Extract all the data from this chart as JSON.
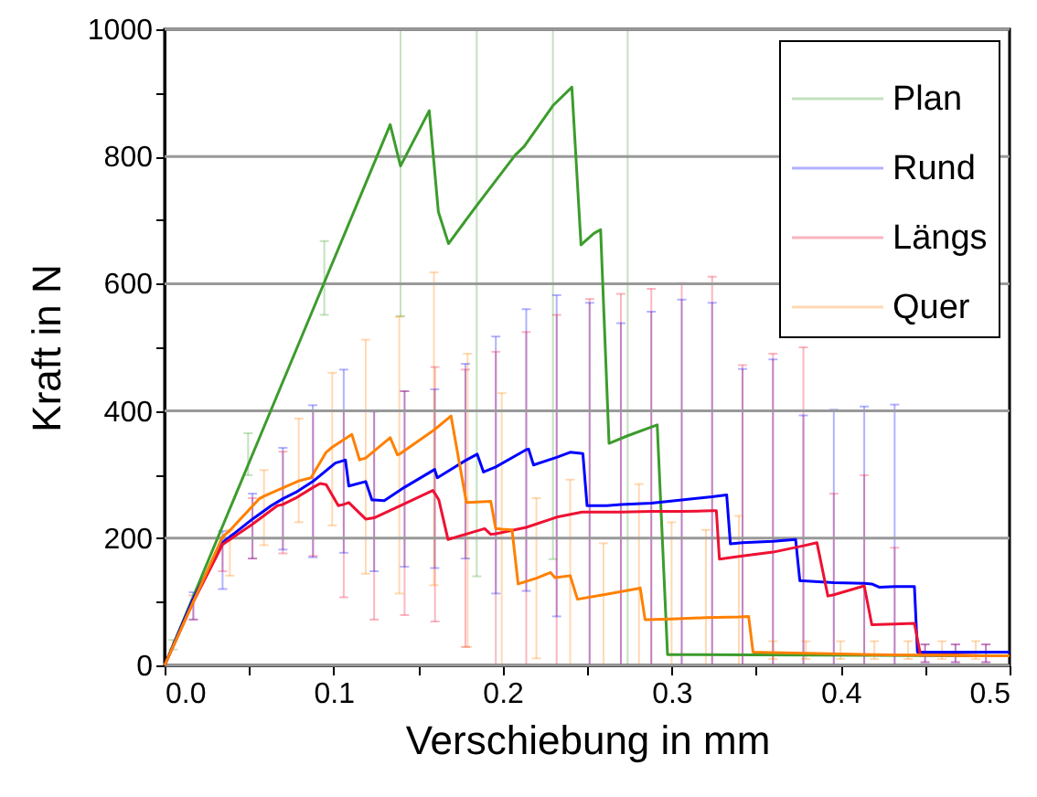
{
  "chart_data": {
    "type": "line",
    "xlabel": "Verschiebung in mm",
    "ylabel": "Kraft in N",
    "xlim": [
      0,
      0.5
    ],
    "ylim": [
      0,
      1000
    ],
    "xticks": [
      {
        "value": 0,
        "label": "0.0"
      },
      {
        "value": 0.05,
        "label": null
      },
      {
        "value": 0.1,
        "label": "0.1"
      },
      {
        "value": 0.15,
        "label": null
      },
      {
        "value": 0.2,
        "label": "0.2"
      },
      {
        "value": 0.25,
        "label": null
      },
      {
        "value": 0.3,
        "label": "0.3"
      },
      {
        "value": 0.35,
        "label": null
      },
      {
        "value": 0.4,
        "label": "0.4"
      },
      {
        "value": 0.45,
        "label": null
      },
      {
        "value": 0.5,
        "label": "0.5"
      }
    ],
    "yticks": [
      0,
      {
        "value": 100,
        "label": null
      },
      200,
      {
        "value": 300,
        "label": null
      },
      400,
      {
        "value": 500,
        "label": null
      },
      600,
      {
        "value": 700,
        "label": null
      },
      800,
      {
        "value": 900,
        "label": null
      },
      1000
    ],
    "grid": "y",
    "legend": "top right",
    "line_style": "solid",
    "marker": "none",
    "series": [
      {
        "name": "Plan",
        "color": "#3c9c2c",
        "x": [
          0,
          0.005,
          0.0494,
          0.0945,
          0.1335,
          0.1396,
          0.1566,
          0.162,
          0.168,
          0.1847,
          0.2074,
          0.2128,
          0.2298,
          0.241,
          0.2464,
          0.254,
          0.258,
          0.263,
          0.274,
          0.2915,
          0.2976,
          0.5
        ],
        "values": [
          0,
          32,
          315,
          602,
          850,
          785,
          872,
          713,
          663,
          723,
          802,
          816,
          880,
          909,
          661,
          679,
          685,
          349,
          361,
          378,
          17,
          15
        ],
        "errors": [
          null,
          [
            25,
            40
          ],
          [
            299,
            365
          ],
          [
            551,
            667
          ],
          null,
          [
            549,
            1000
          ],
          null,
          null,
          null,
          [
            140,
            1000
          ],
          null,
          null,
          [
            167,
            1000
          ],
          null,
          null,
          null,
          null,
          null,
          [
            0,
            1000
          ],
          null,
          null,
          null
        ]
      },
      {
        "name": "Rund",
        "color": "#0000ff",
        "x": [
          0,
          0.017,
          0.0343,
          0.052,
          0.0631,
          0.07,
          0.0776,
          0.0877,
          0.101,
          0.106,
          0.107,
          0.109,
          0.119,
          0.1227,
          0.124,
          0.13,
          0.142,
          0.1598,
          0.1614,
          0.178,
          0.185,
          0.1887,
          0.196,
          0.214,
          0.2154,
          0.2183,
          0.232,
          0.24,
          0.2475,
          0.25,
          0.2515,
          0.2616,
          0.27,
          0.288,
          0.306,
          0.324,
          0.3326,
          0.3348,
          0.342,
          0.36,
          0.3734,
          0.3759,
          0.378,
          0.396,
          0.414,
          0.4185,
          0.4228,
          0.432,
          0.4437,
          0.4455,
          0.45,
          0.468,
          0.486,
          0.5
        ],
        "values": [
          0,
          105,
          193,
          230,
          251,
          262,
          272,
          289,
          318,
          322,
          323,
          282,
          289,
          260,
          260,
          259,
          280,
          308,
          295,
          322,
          332,
          304,
          312,
          339,
          340,
          315,
          327,
          335,
          333,
          251,
          251,
          251,
          253,
          255,
          260,
          265,
          268,
          191,
          193,
          195,
          198,
          133,
          133,
          130,
          129,
          128,
          123,
          124,
          124,
          21,
          21,
          21,
          21,
          21
        ],
        "errors": [
          null,
          [
            72,
            115
          ],
          [
            120,
            211
          ],
          [
            168,
            270
          ],
          null,
          [
            182,
            342
          ],
          null,
          [
            170,
            409
          ],
          null,
          [
            177,
            465
          ],
          null,
          null,
          null,
          null,
          [
            148,
            399
          ],
          null,
          [
            155,
            431
          ],
          [
            153,
            434
          ],
          null,
          [
            168,
            474
          ],
          null,
          null,
          [
            113,
            517
          ],
          [
            117,
            560
          ],
          null,
          null,
          [
            77,
            582
          ],
          null,
          null,
          null,
          [
            0,
            570
          ],
          null,
          [
            0,
            538
          ],
          [
            0,
            556
          ],
          [
            0,
            575
          ],
          [
            0,
            570
          ],
          null,
          null,
          [
            0,
            466
          ],
          [
            0,
            481
          ],
          null,
          null,
          [
            0,
            393
          ],
          [
            0,
            402
          ],
          [
            0,
            407
          ],
          null,
          null,
          [
            0,
            410
          ],
          null,
          null,
          [
            5,
            33
          ],
          [
            5,
            33
          ],
          [
            5,
            33
          ],
          null
        ]
      },
      {
        "name": "Längs",
        "color": "#ee1133",
        "x": [
          0,
          0.017,
          0.0343,
          0.052,
          0.0667,
          0.07,
          0.0776,
          0.088,
          0.092,
          0.0956,
          0.1028,
          0.106,
          0.109,
          0.119,
          0.124,
          0.142,
          0.1587,
          0.16,
          0.1623,
          0.1677,
          0.178,
          0.1894,
          0.193,
          0.196,
          0.214,
          0.232,
          0.247,
          0.2515,
          0.27,
          0.288,
          0.306,
          0.324,
          0.3265,
          0.3283,
          0.342,
          0.36,
          0.378,
          0.386,
          0.3925,
          0.396,
          0.414,
          0.4185,
          0.432,
          0.4437,
          0.4473,
          0.45,
          0.468,
          0.486,
          0.5
        ],
        "values": [
          0,
          100,
          190,
          222,
          251,
          253,
          263,
          280,
          286,
          284,
          251,
          253,
          256,
          230,
          232,
          254,
          275,
          270,
          260,
          198,
          206,
          215,
          206,
          207,
          217,
          233,
          241,
          241,
          241,
          242,
          242,
          243,
          243,
          167,
          172,
          178,
          188,
          193,
          109,
          111,
          125,
          64,
          65,
          66,
          16,
          16,
          16,
          15,
          15
        ],
        "errors": [
          null,
          [
            72,
            110
          ],
          [
            148,
            201
          ],
          [
            168,
            263
          ],
          null,
          [
            176,
            336
          ],
          null,
          [
            172,
            400
          ],
          null,
          null,
          null,
          [
            107,
            400
          ],
          null,
          null,
          [
            72,
            400
          ],
          [
            79,
            431
          ],
          null,
          [
            69,
            469
          ],
          null,
          null,
          [
            29,
            465
          ],
          null,
          null,
          [
            0,
            493
          ],
          [
            0,
            524
          ],
          [
            0,
            551
          ],
          null,
          [
            0,
            576
          ],
          [
            0,
            584
          ],
          [
            0,
            592
          ],
          [
            0,
            601
          ],
          [
            0,
            611
          ],
          null,
          null,
          [
            0,
            472
          ],
          [
            0,
            490
          ],
          [
            0,
            500
          ],
          null,
          null,
          [
            0,
            270
          ],
          [
            0,
            299
          ],
          null,
          [
            0,
            185
          ],
          null,
          null,
          [
            5,
            33
          ],
          [
            5,
            33
          ],
          [
            5,
            33
          ],
          null
        ]
      },
      {
        "name": "Quer",
        "color": "#ff8000",
        "x": [
          0,
          0.0343,
          0.0386,
          0.056,
          0.0588,
          0.0776,
          0.0794,
          0.0866,
          0.0956,
          0.0992,
          0.1108,
          0.1154,
          0.119,
          0.1335,
          0.1378,
          0.1389,
          0.1594,
          0.1695,
          0.1731,
          0.1786,
          0.1793,
          0.193,
          0.1959,
          0.1995,
          0.2056,
          0.2092,
          0.22,
          0.2284,
          0.231,
          0.24,
          0.2443,
          0.2597,
          0.2807,
          0.2814,
          0.2843,
          0.3,
          0.3203,
          0.3398,
          0.3456,
          0.3482,
          0.36,
          0.3795,
          0.4,
          0.42,
          0.44,
          0.46,
          0.48,
          0.5
        ],
        "values": [
          0,
          202,
          212,
          262,
          266,
          288,
          290,
          295,
          335,
          343,
          363,
          323,
          326,
          358,
          331,
          332,
          370,
          392,
          338,
          256,
          256,
          258,
          215,
          214,
          213,
          128,
          137,
          146,
          138,
          141,
          104,
          111,
          121,
          122,
          72,
          73,
          75,
          76,
          77,
          21,
          20,
          19,
          18,
          17,
          16,
          16,
          15,
          15
        ],
        "errors": [
          null,
          null,
          [
            141,
            213
          ],
          null,
          [
            189,
            307
          ],
          null,
          [
            225,
            388
          ],
          null,
          null,
          [
            220,
            460
          ],
          null,
          null,
          [
            144,
            512
          ],
          null,
          null,
          [
            113,
            548
          ],
          [
            126,
            618
          ],
          null,
          null,
          null,
          [
            29,
            490
          ],
          null,
          null,
          [
            0,
            428
          ],
          null,
          null,
          [
            11,
            263
          ],
          null,
          null,
          [
            0,
            292
          ],
          null,
          [
            0,
            192
          ],
          [
            0,
            285
          ],
          null,
          null,
          [
            0,
            225
          ],
          [
            0,
            213
          ],
          [
            0,
            235
          ],
          null,
          null,
          [
            10,
            38
          ],
          [
            10,
            38
          ],
          [
            10,
            38
          ],
          [
            10,
            38
          ],
          [
            10,
            38
          ],
          [
            10,
            38
          ],
          [
            10,
            38
          ],
          null
        ]
      }
    ]
  }
}
